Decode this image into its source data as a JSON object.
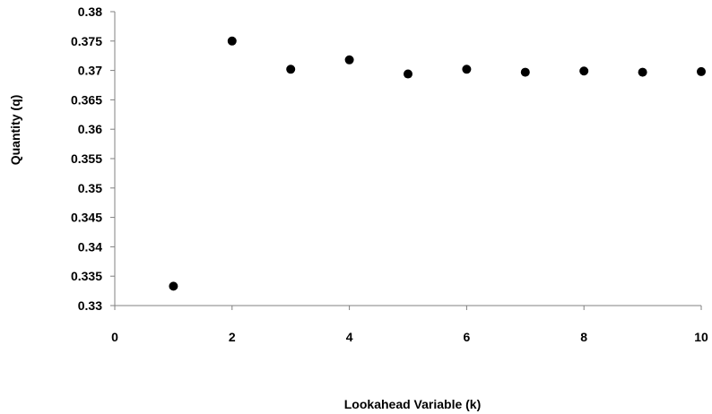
{
  "chart_data": {
    "type": "scatter",
    "title": "",
    "xlabel": "Lookahead Variable (k)",
    "ylabel": "Quantity (q)",
    "xlim": [
      0,
      10
    ],
    "ylim": [
      0.33,
      0.38
    ],
    "xticks": [
      0,
      2,
      4,
      6,
      8,
      10
    ],
    "xtick_labels": [
      "0",
      "2",
      "4",
      "6",
      "8",
      "10"
    ],
    "yticks": [
      0.33,
      0.335,
      0.34,
      0.345,
      0.35,
      0.355,
      0.36,
      0.365,
      0.37,
      0.375,
      0.38
    ],
    "ytick_labels": [
      "0.33",
      "0.335",
      "0.34",
      "0.345",
      "0.35",
      "0.355",
      "0.36",
      "0.365",
      "0.37",
      "0.375",
      "0.38"
    ],
    "grid": false,
    "legend": "none",
    "marker_color": "#000000",
    "series": [
      {
        "x": [
          1,
          2,
          3,
          4,
          5,
          6,
          7,
          8,
          9,
          10
        ],
        "y": [
          0.3333,
          0.375,
          0.3702,
          0.3718,
          0.3694,
          0.3702,
          0.3697,
          0.3699,
          0.3697,
          0.3698
        ]
      }
    ]
  }
}
